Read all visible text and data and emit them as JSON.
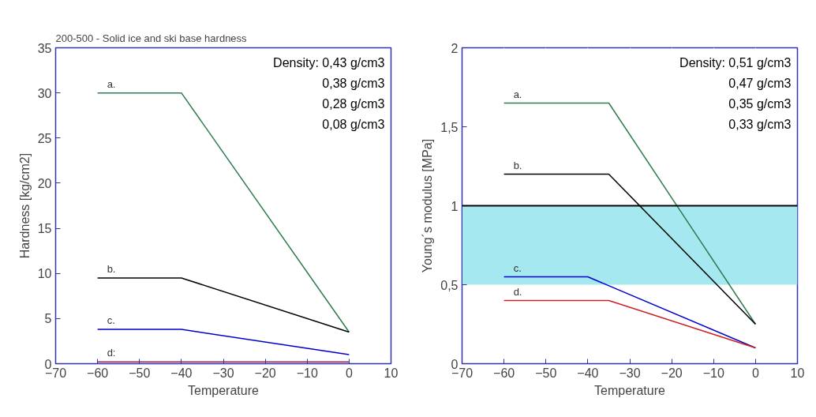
{
  "chart_data": [
    {
      "type": "line",
      "title": "200-500 - Solid ice and ski base hardness",
      "xlabel": "Temperature",
      "ylabel": "Hardness [kg/cm2]",
      "xlim": [
        -70,
        10
      ],
      "xticks": [
        -70,
        -60,
        -50,
        -40,
        -30,
        -20,
        -10,
        0,
        10
      ],
      "ylim": [
        0,
        35
      ],
      "yticks": [
        0,
        5,
        10,
        15,
        20,
        25,
        30,
        35
      ],
      "series": [
        {
          "name": "a.",
          "color": "#2e7d4f",
          "x": [
            -60,
            -40,
            0
          ],
          "values": [
            30,
            30,
            3.5
          ]
        },
        {
          "name": "b.",
          "color": "#000000",
          "x": [
            -60,
            -40,
            0
          ],
          "values": [
            9.5,
            9.5,
            3.5
          ]
        },
        {
          "name": "c.",
          "color": "#0000cc",
          "x": [
            -60,
            -40,
            0
          ],
          "values": [
            3.8,
            3.8,
            1
          ]
        },
        {
          "name": "d:",
          "color": "#a0205a",
          "x": [
            -60,
            -40,
            0
          ],
          "values": [
            0.2,
            0.2,
            0.2
          ]
        }
      ],
      "annotations": [
        "Density: 0,43 g/cm3",
        "0,38 g/cm3",
        "0,28 g/cm3",
        "0,08 g/cm3"
      ]
    },
    {
      "type": "line",
      "xlabel": "Temperature",
      "ylabel": "Young´s modulus [MPa]",
      "xlim": [
        -70,
        10
      ],
      "xticks": [
        -70,
        -60,
        -50,
        -40,
        -30,
        -20,
        -10,
        0,
        10
      ],
      "ylim": [
        0,
        2
      ],
      "yticks": [
        0,
        {
          "value": 0.5,
          "label": "0,5"
        },
        1,
        {
          "value": 1.5,
          "label": "1,5"
        },
        2
      ],
      "grid": "x",
      "series": [
        {
          "name": "a.",
          "color": "#2e7d4f",
          "x": [
            -60,
            -35,
            0
          ],
          "values": [
            1.65,
            1.65,
            0.25
          ]
        },
        {
          "name": "b.",
          "color": "#000000",
          "x": [
            -60,
            -35,
            0
          ],
          "values": [
            1.2,
            1.2,
            0.25
          ]
        },
        {
          "name": "c.",
          "color": "#0000cc",
          "x": [
            -60,
            -40,
            0
          ],
          "values": [
            0.55,
            0.55,
            0.1
          ]
        },
        {
          "name": "d.",
          "color": "#cc2222",
          "x": [
            -60,
            -35,
            0
          ],
          "values": [
            0.4,
            0.4,
            0.1
          ]
        }
      ],
      "bands": [
        {
          "axis": "y",
          "from": 0.5,
          "to": 1,
          "color": "#a6e8f0"
        }
      ],
      "ref_lines": [
        {
          "axis": "y",
          "value": 1,
          "color": "#000000"
        }
      ],
      "annotations": [
        "Density: 0,51 g/cm3",
        "0,47 g/cm3",
        "0,35 g/cm3",
        "0,33 g/cm3"
      ]
    }
  ]
}
